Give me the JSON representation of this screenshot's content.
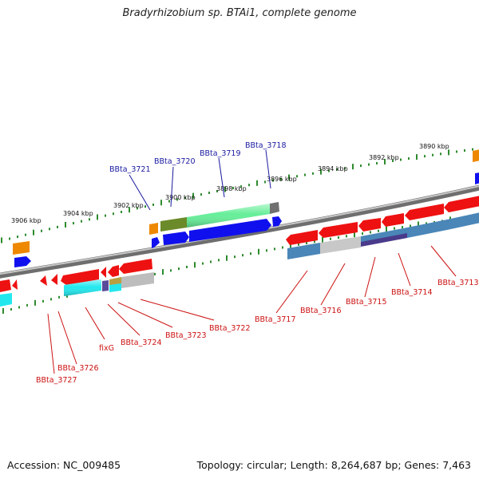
{
  "title": "Bradyrhizobium sp. BTAi1, complete genome",
  "footer": {
    "accession": "Accession: NC_009485",
    "summary": "Topology: circular; Length: 8,264,687 bp; Genes: 7,463"
  },
  "scale_labels": [
    "3906 kbp",
    "3904 kbp",
    "3902 kbp",
    "3900 kbp",
    "3898 kbp",
    "3896 kbp",
    "3894 kbp",
    "3892 kbp",
    "3890 kbp"
  ],
  "top_gene_labels": [
    "BBta_3721",
    "BBta_3720",
    "BBta_3719",
    "BBta_3718"
  ],
  "bottom_gene_labels": [
    "BBta_3727",
    "BBta_3726",
    "fixG",
    "BBta_3724",
    "BBta_3723",
    "BBta_3722",
    "BBta_3717",
    "BBta_3716",
    "BBta_3715",
    "BBta_3714",
    "BBta_3713"
  ],
  "colors": {
    "backbone": "#8a8a8a",
    "ticks": "#2e8b2e",
    "top_label": "#1a1aa0",
    "bottom_label": "#cc1111",
    "gene_red": "#ee1111",
    "gene_blue": "#1010ee",
    "gene_orange": "#ee8800",
    "gene_cyan": "#22e8ee",
    "gene_steelblue": "#4a86b8",
    "gene_green": "#66ee99",
    "gene_olive": "#6b8a2a",
    "gene_gray": "#9a9a9a",
    "gene_purple": "#5a4a9a"
  }
}
